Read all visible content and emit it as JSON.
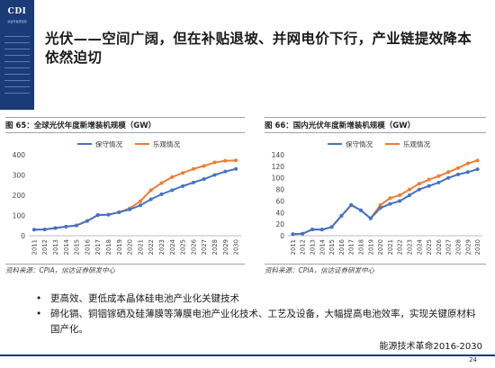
{
  "logo": {
    "text": "CDI",
    "sub": "综合开发研究院"
  },
  "page_title": "光伏——空间广阔，但在补贴退坡、并网电价下行，产业链提效降本依然迫切",
  "captions": {
    "left": "图 65：全球光伏年度新增装机规模（GW）",
    "right": "图 66：国内光伏年度新增装机规模（GW）"
  },
  "sources": {
    "left": "资料来源：CPIA，信达证券研发中心",
    "right": "资料来源：CPIA，信达证券研发中心"
  },
  "bullets": [
    "更高效、更低成本晶体硅电池产业化关键技术",
    "碲化镉、铜铟镓硒及硅薄膜等薄膜电池产业化技术、工艺及设备，大幅提高电池效率，实现关键原材料国产化。"
  ],
  "bullet_glyph": "•",
  "footer": {
    "text": "能源技术革命2016-2030",
    "page": "24"
  },
  "colors": {
    "conservative": "#4472c4",
    "optimistic": "#ed7d31",
    "logo_bg": "#1b3a78"
  },
  "chart_data": [
    {
      "type": "line",
      "title": "",
      "categories": [
        "2011",
        "2012",
        "2013",
        "2014",
        "2015",
        "2016",
        "2017",
        "2018",
        "2019",
        "2020",
        "2021",
        "2022",
        "2023",
        "2024",
        "2025",
        "2026",
        "2027",
        "2028",
        "2029",
        "2030"
      ],
      "series": [
        {
          "name": "保守情况",
          "values": [
            30,
            31,
            38,
            45,
            51,
            73,
            102,
            104,
            116,
            130,
            150,
            180,
            205,
            225,
            245,
            263,
            280,
            300,
            317,
            330
          ]
        },
        {
          "name": "乐观情况",
          "values": [
            30,
            31,
            38,
            45,
            51,
            73,
            102,
            104,
            116,
            135,
            170,
            225,
            260,
            290,
            310,
            330,
            345,
            362,
            370,
            372
          ]
        }
      ],
      "ylim": [
        0,
        400
      ],
      "yticks": [
        0,
        100,
        200,
        300,
        400
      ],
      "xlabel": "",
      "ylabel": "",
      "legend": "top-center",
      "grid": false
    },
    {
      "type": "line",
      "title": "",
      "categories": [
        "2011",
        "2012",
        "2013",
        "2014",
        "2015",
        "2016",
        "2017",
        "2018",
        "2019",
        "2020",
        "2021",
        "2022",
        "2023",
        "2024",
        "2025",
        "2026",
        "2027",
        "2028",
        "2029",
        "2030"
      ],
      "series": [
        {
          "name": "保守情况",
          "values": [
            2.7,
            3.5,
            10.9,
            10.6,
            15.1,
            34.5,
            53,
            44,
            30,
            48,
            55,
            60,
            70,
            80,
            86,
            92,
            100,
            106,
            110,
            115
          ]
        },
        {
          "name": "乐观情况",
          "values": [
            2.7,
            3.5,
            10.9,
            10.6,
            15.1,
            34.5,
            53,
            44,
            30,
            53,
            65,
            70,
            80,
            90,
            97,
            103,
            110,
            117,
            125,
            130
          ]
        }
      ],
      "ylim": [
        0,
        140
      ],
      "yticks": [
        0,
        20,
        40,
        60,
        80,
        100,
        120,
        140
      ],
      "xlabel": "",
      "ylabel": "",
      "legend": "top-center",
      "grid": false
    }
  ]
}
